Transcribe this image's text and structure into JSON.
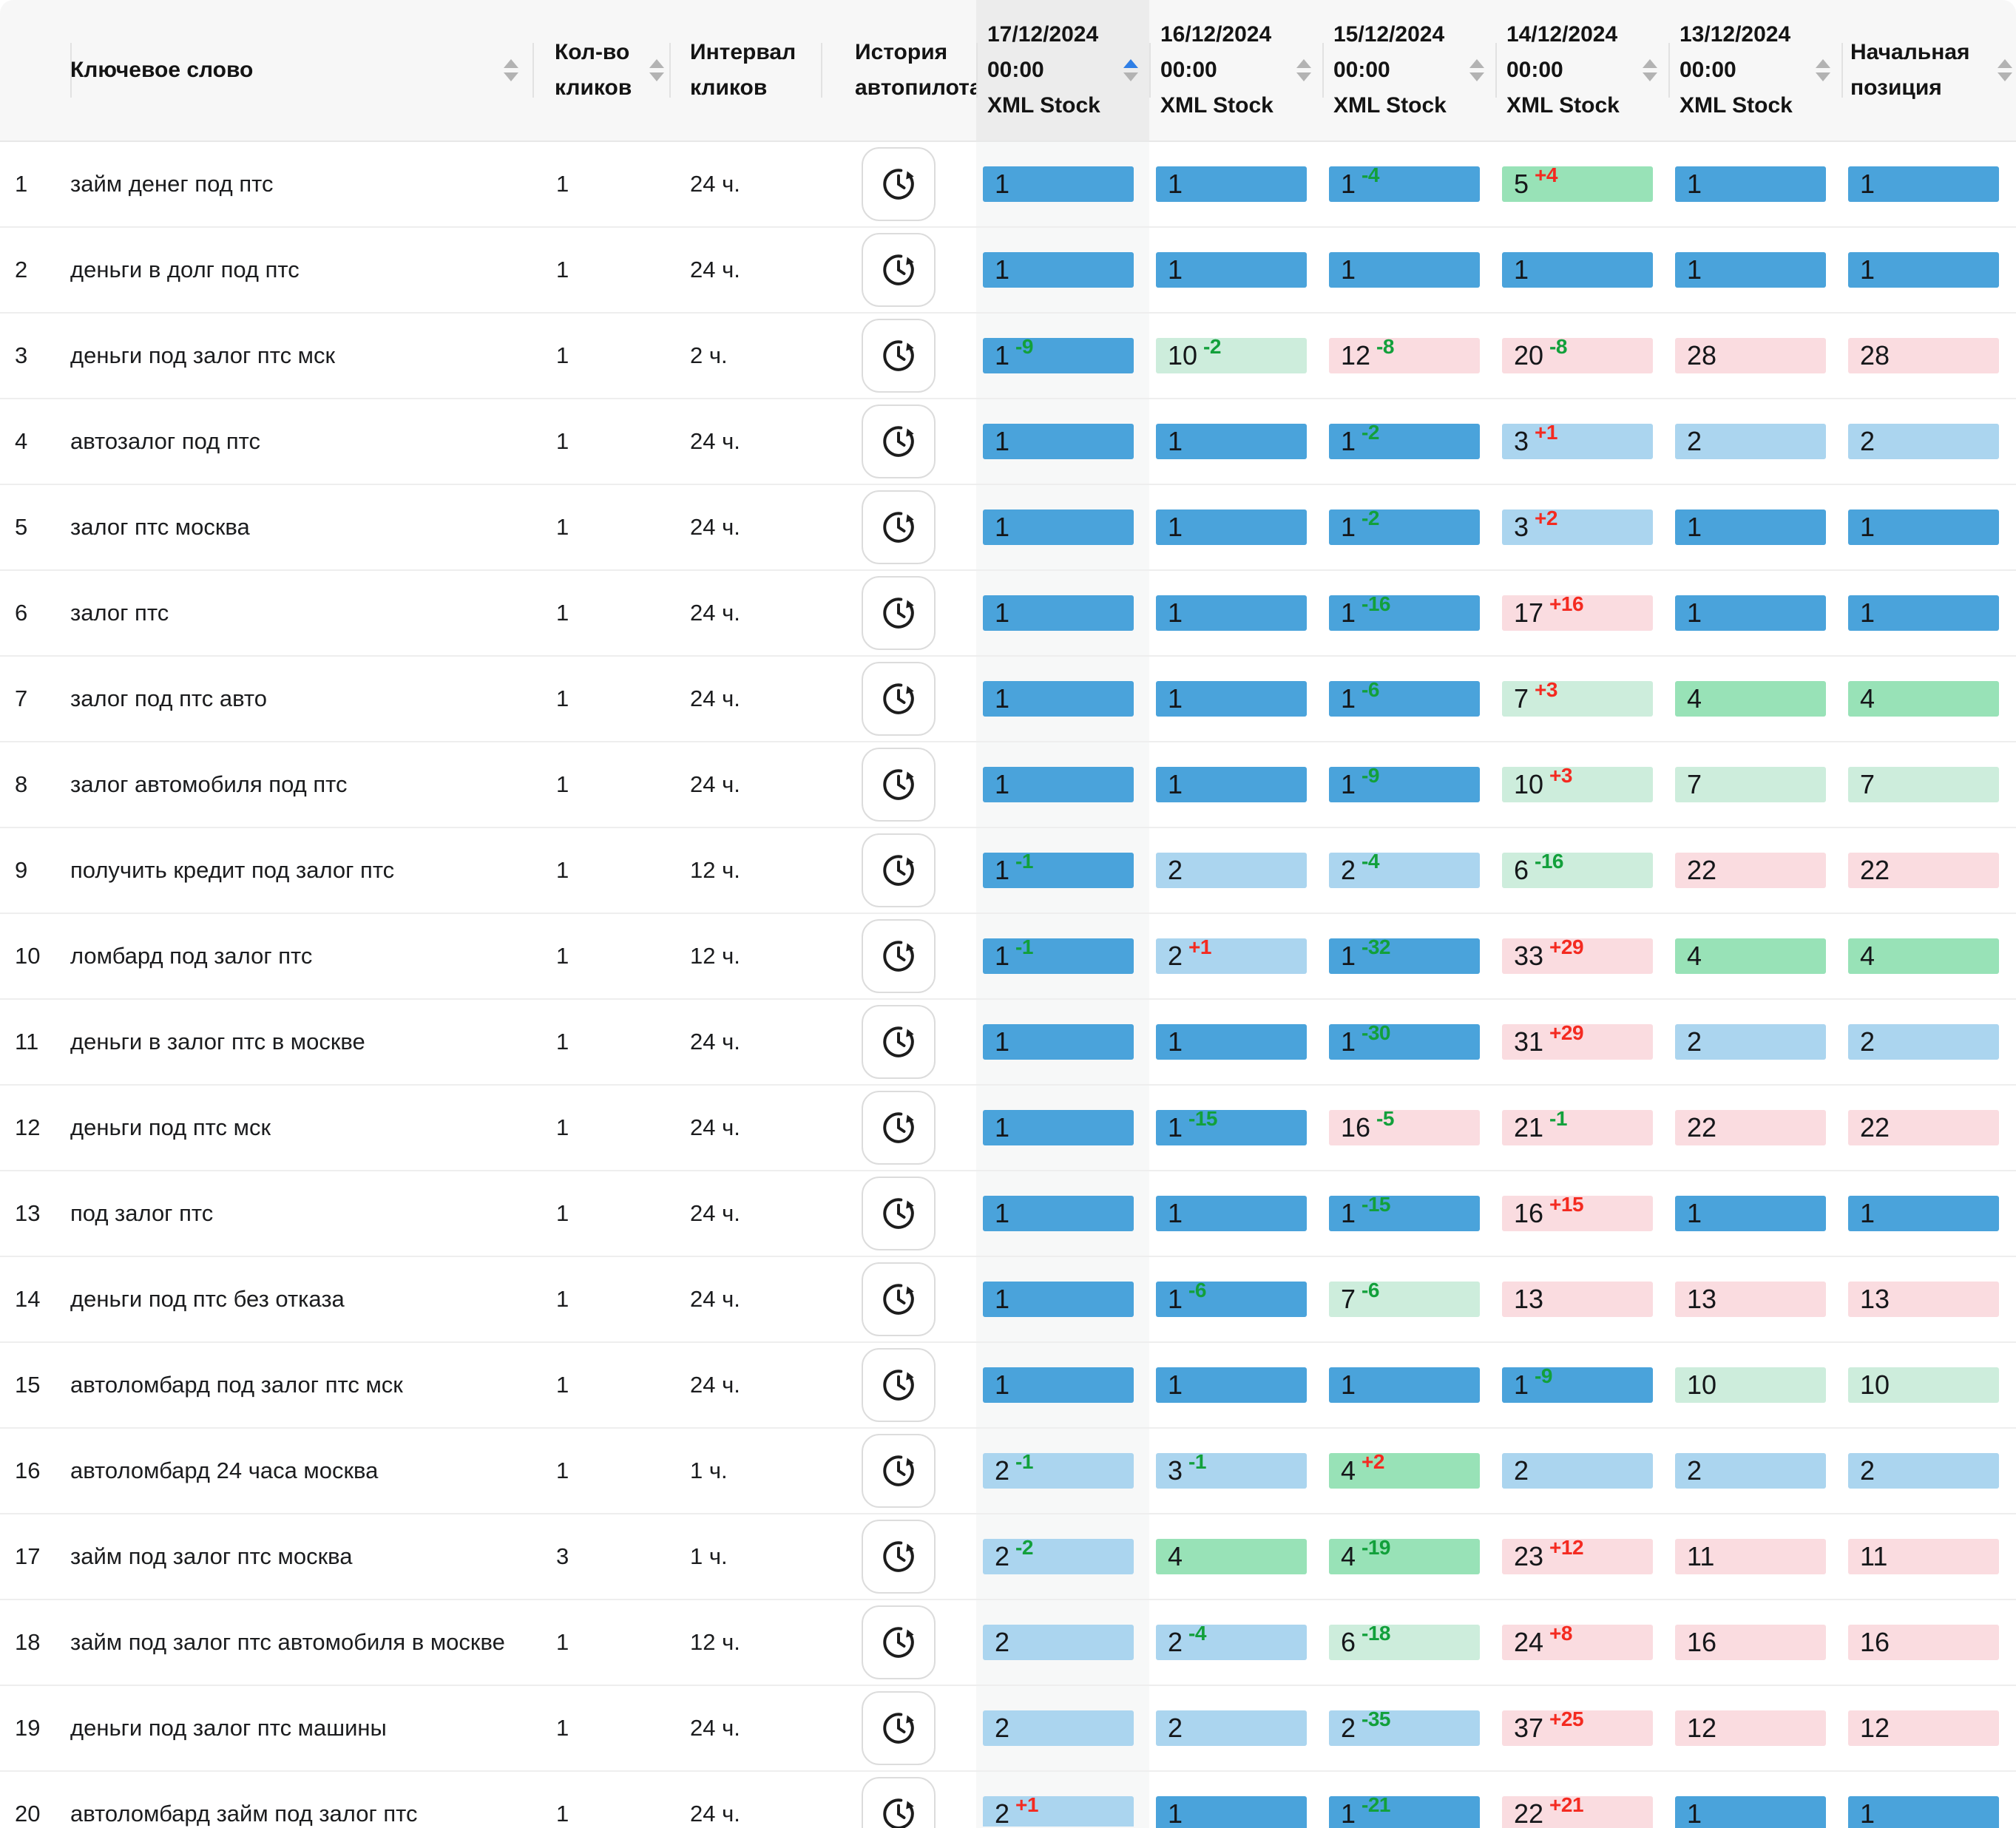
{
  "header": {
    "keyword": "Ключевое слово",
    "clicks": "Кол-во кликов",
    "interval": "Интервал кликов",
    "autopilot": "История автопилота",
    "dates": [
      {
        "date": "17/12/2024",
        "time": "00:00",
        "source": "XML Stock",
        "sorted": "asc"
      },
      {
        "date": "16/12/2024",
        "time": "00:00",
        "source": "XML Stock",
        "sorted": ""
      },
      {
        "date": "15/12/2024",
        "time": "00:00",
        "source": "XML Stock",
        "sorted": ""
      },
      {
        "date": "14/12/2024",
        "time": "00:00",
        "source": "XML Stock",
        "sorted": ""
      },
      {
        "date": "13/12/2024",
        "time": "00:00",
        "source": "XML Stock",
        "sorted": ""
      }
    ],
    "initial": "Начальная позиция"
  },
  "icons": {
    "autopilot_history": "clock-history-icon",
    "sort": "sort-arrows-icon"
  },
  "colors": {
    "pos1": "#4aa3db",
    "pos2_3": "#abd5ef",
    "pos4_5": "#98e2b7",
    "pos6_10": "#cdeddc",
    "pos11plus": "#fadce0",
    "delta_up": "#12a03b",
    "delta_down": "#f42a20",
    "header_bg": "#f7f7f7",
    "sorted_header_bg": "#ececec",
    "sorted_col_bg": "#f7f8f8",
    "accent_sort": "#2f7fe6"
  },
  "rows": [
    {
      "n": "1",
      "keyword": "займ денег под птс",
      "clicks": "1",
      "interval": "24 ч.",
      "positions": [
        {
          "v": "1"
        },
        {
          "v": "1"
        },
        {
          "v": "1",
          "d": "-4"
        },
        {
          "v": "5",
          "d": "+4"
        },
        {
          "v": "1"
        },
        {
          "v": "1"
        }
      ]
    },
    {
      "n": "2",
      "keyword": "деньги в долг под птс",
      "clicks": "1",
      "interval": "24 ч.",
      "positions": [
        {
          "v": "1"
        },
        {
          "v": "1"
        },
        {
          "v": "1"
        },
        {
          "v": "1"
        },
        {
          "v": "1"
        },
        {
          "v": "1"
        }
      ]
    },
    {
      "n": "3",
      "keyword": "деньги под залог птс мск",
      "clicks": "1",
      "interval": "2 ч.",
      "positions": [
        {
          "v": "1",
          "d": "-9"
        },
        {
          "v": "10",
          "d": "-2"
        },
        {
          "v": "12",
          "d": "-8"
        },
        {
          "v": "20",
          "d": "-8"
        },
        {
          "v": "28"
        },
        {
          "v": "28"
        }
      ]
    },
    {
      "n": "4",
      "keyword": "автозалог под птс",
      "clicks": "1",
      "interval": "24 ч.",
      "positions": [
        {
          "v": "1"
        },
        {
          "v": "1"
        },
        {
          "v": "1",
          "d": "-2"
        },
        {
          "v": "3",
          "d": "+1"
        },
        {
          "v": "2"
        },
        {
          "v": "2"
        }
      ]
    },
    {
      "n": "5",
      "keyword": "залог птс москва",
      "clicks": "1",
      "interval": "24 ч.",
      "positions": [
        {
          "v": "1"
        },
        {
          "v": "1"
        },
        {
          "v": "1",
          "d": "-2"
        },
        {
          "v": "3",
          "d": "+2"
        },
        {
          "v": "1"
        },
        {
          "v": "1"
        }
      ]
    },
    {
      "n": "6",
      "keyword": "залог птс",
      "clicks": "1",
      "interval": "24 ч.",
      "positions": [
        {
          "v": "1"
        },
        {
          "v": "1"
        },
        {
          "v": "1",
          "d": "-16"
        },
        {
          "v": "17",
          "d": "+16"
        },
        {
          "v": "1"
        },
        {
          "v": "1"
        }
      ]
    },
    {
      "n": "7",
      "keyword": "залог под птс авто",
      "clicks": "1",
      "interval": "24 ч.",
      "positions": [
        {
          "v": "1"
        },
        {
          "v": "1"
        },
        {
          "v": "1",
          "d": "-6"
        },
        {
          "v": "7",
          "d": "+3"
        },
        {
          "v": "4"
        },
        {
          "v": "4"
        }
      ]
    },
    {
      "n": "8",
      "keyword": "залог автомобиля под птс",
      "clicks": "1",
      "interval": "24 ч.",
      "positions": [
        {
          "v": "1"
        },
        {
          "v": "1"
        },
        {
          "v": "1",
          "d": "-9"
        },
        {
          "v": "10",
          "d": "+3"
        },
        {
          "v": "7"
        },
        {
          "v": "7"
        }
      ]
    },
    {
      "n": "9",
      "keyword": "получить кредит под залог птс",
      "clicks": "1",
      "interval": "12 ч.",
      "positions": [
        {
          "v": "1",
          "d": "-1"
        },
        {
          "v": "2"
        },
        {
          "v": "2",
          "d": "-4"
        },
        {
          "v": "6",
          "d": "-16"
        },
        {
          "v": "22"
        },
        {
          "v": "22"
        }
      ]
    },
    {
      "n": "10",
      "keyword": "ломбард под залог птс",
      "clicks": "1",
      "interval": "12 ч.",
      "positions": [
        {
          "v": "1",
          "d": "-1"
        },
        {
          "v": "2",
          "d": "+1"
        },
        {
          "v": "1",
          "d": "-32"
        },
        {
          "v": "33",
          "d": "+29"
        },
        {
          "v": "4"
        },
        {
          "v": "4"
        }
      ]
    },
    {
      "n": "11",
      "keyword": "деньги в залог птс в москве",
      "clicks": "1",
      "interval": "24 ч.",
      "positions": [
        {
          "v": "1"
        },
        {
          "v": "1"
        },
        {
          "v": "1",
          "d": "-30"
        },
        {
          "v": "31",
          "d": "+29"
        },
        {
          "v": "2"
        },
        {
          "v": "2"
        }
      ]
    },
    {
      "n": "12",
      "keyword": "деньги под птс мск",
      "clicks": "1",
      "interval": "24 ч.",
      "positions": [
        {
          "v": "1"
        },
        {
          "v": "1",
          "d": "-15"
        },
        {
          "v": "16",
          "d": "-5"
        },
        {
          "v": "21",
          "d": "-1"
        },
        {
          "v": "22"
        },
        {
          "v": "22"
        }
      ]
    },
    {
      "n": "13",
      "keyword": "под залог птс",
      "clicks": "1",
      "interval": "24 ч.",
      "positions": [
        {
          "v": "1"
        },
        {
          "v": "1"
        },
        {
          "v": "1",
          "d": "-15"
        },
        {
          "v": "16",
          "d": "+15"
        },
        {
          "v": "1"
        },
        {
          "v": "1"
        }
      ]
    },
    {
      "n": "14",
      "keyword": "деньги под птс без отказа",
      "clicks": "1",
      "interval": "24 ч.",
      "positions": [
        {
          "v": "1"
        },
        {
          "v": "1",
          "d": "-6"
        },
        {
          "v": "7",
          "d": "-6"
        },
        {
          "v": "13"
        },
        {
          "v": "13"
        },
        {
          "v": "13"
        }
      ]
    },
    {
      "n": "15",
      "keyword": "автоломбард под залог птс мск",
      "clicks": "1",
      "interval": "24 ч.",
      "positions": [
        {
          "v": "1"
        },
        {
          "v": "1"
        },
        {
          "v": "1"
        },
        {
          "v": "1",
          "d": "-9"
        },
        {
          "v": "10"
        },
        {
          "v": "10"
        }
      ]
    },
    {
      "n": "16",
      "keyword": "автоломбард 24 часа москва",
      "clicks": "1",
      "interval": "1 ч.",
      "positions": [
        {
          "v": "2",
          "d": "-1"
        },
        {
          "v": "3",
          "d": "-1"
        },
        {
          "v": "4",
          "d": "+2"
        },
        {
          "v": "2"
        },
        {
          "v": "2"
        },
        {
          "v": "2"
        }
      ]
    },
    {
      "n": "17",
      "keyword": "займ под залог птс москва",
      "clicks": "3",
      "interval": "1 ч.",
      "positions": [
        {
          "v": "2",
          "d": "-2"
        },
        {
          "v": "4"
        },
        {
          "v": "4",
          "d": "-19"
        },
        {
          "v": "23",
          "d": "+12"
        },
        {
          "v": "11"
        },
        {
          "v": "11"
        }
      ]
    },
    {
      "n": "18",
      "keyword": "займ под залог птс автомобиля в москве",
      "clicks": "1",
      "interval": "12 ч.",
      "positions": [
        {
          "v": "2"
        },
        {
          "v": "2",
          "d": "-4"
        },
        {
          "v": "6",
          "d": "-18"
        },
        {
          "v": "24",
          "d": "+8"
        },
        {
          "v": "16"
        },
        {
          "v": "16"
        }
      ]
    },
    {
      "n": "19",
      "keyword": "деньги под залог птс машины",
      "clicks": "1",
      "interval": "24 ч.",
      "positions": [
        {
          "v": "2"
        },
        {
          "v": "2"
        },
        {
          "v": "2",
          "d": "-35"
        },
        {
          "v": "37",
          "d": "+25"
        },
        {
          "v": "12"
        },
        {
          "v": "12"
        }
      ]
    },
    {
      "n": "20",
      "keyword": "автоломбард займ под залог птс",
      "clicks": "1",
      "interval": "24 ч.",
      "positions": [
        {
          "v": "2",
          "d": "+1"
        },
        {
          "v": "1"
        },
        {
          "v": "1",
          "d": "-21"
        },
        {
          "v": "22",
          "d": "+21"
        },
        {
          "v": "1"
        },
        {
          "v": "1"
        }
      ]
    }
  ]
}
